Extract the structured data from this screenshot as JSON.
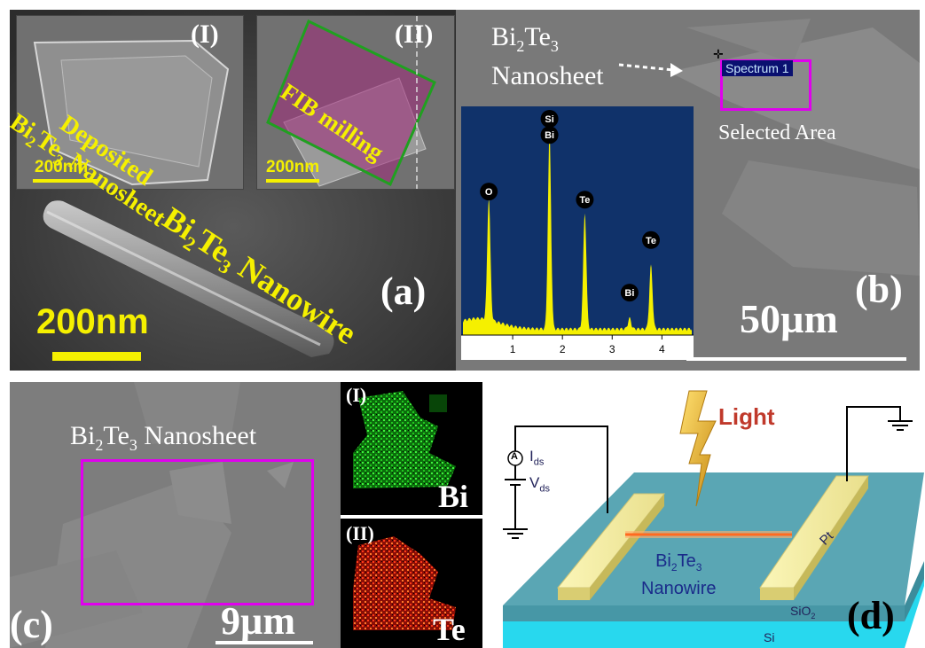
{
  "panel_a": {
    "label": "(a)",
    "inset_1": {
      "label": "(I)",
      "text": "Deposited",
      "material_main": "Bi",
      "sub1": "2",
      "mid": "Te",
      "sub2": "3",
      "suffix": " Nanosheet",
      "scale": "200nm"
    },
    "inset_2": {
      "label": "(II)",
      "text": "FIB milling",
      "scale": "200nm"
    },
    "wire_label": {
      "el1": "Bi",
      "sub1": "2",
      "el2": "Te",
      "sub2": "3",
      "suffix": " Nanowire"
    },
    "scale": "200nm"
  },
  "panel_b": {
    "label": "(b)",
    "title": {
      "el1": "Bi",
      "sub1": "2",
      "el2": "Te",
      "sub2": "3",
      "line2": "Nanosheet"
    },
    "spectrum_tag": "Spectrum 1",
    "selected_text": "Selected Area",
    "scale": "50µm",
    "eds": {
      "x_ticks": [
        "1",
        "2",
        "3",
        "4"
      ],
      "peaks": [
        {
          "label": "O"
        },
        {
          "label": "Bi"
        },
        {
          "label": "Si"
        },
        {
          "label": "Te"
        },
        {
          "label": "Te"
        },
        {
          "label": "Bi"
        }
      ]
    }
  },
  "panel_c": {
    "label": "(c)",
    "title": {
      "el1": "Bi",
      "sub1": "2",
      "el2": "Te",
      "sub2": "3",
      "suffix": " Nanosheet"
    },
    "scale": "9µm",
    "map1": {
      "label": "(I)",
      "element": "Bi",
      "color": "#18e018"
    },
    "map2": {
      "label": "(II)",
      "element": "Te",
      "color": "#ff2a10"
    }
  },
  "panel_d": {
    "label": "(d)",
    "light": "Light",
    "ids": {
      "main": "I",
      "sub": "ds"
    },
    "vds": {
      "main": "V",
      "sub": "ds"
    },
    "ammeter": "A",
    "pt": "Pt",
    "wire": {
      "el1": "Bi",
      "sub1": "2",
      "el2": "Te",
      "sub2": "3",
      "line2": "Nanowire"
    },
    "sio2": {
      "main": "SiO",
      "sub": "2"
    },
    "si": "Si"
  },
  "chart_data": {
    "type": "line",
    "x_ticks": [
      1,
      2,
      3,
      4
    ],
    "xlim": [
      0,
      4.6
    ],
    "peaks": [
      {
        "label": "O",
        "x": 0.52
      },
      {
        "label": "Si",
        "x": 1.74
      },
      {
        "label": "Bi",
        "x": 1.74
      },
      {
        "label": "Te",
        "x": 2.45
      },
      {
        "label": "Bi",
        "x": 3.35
      },
      {
        "label": "Te",
        "x": 3.78
      }
    ]
  }
}
